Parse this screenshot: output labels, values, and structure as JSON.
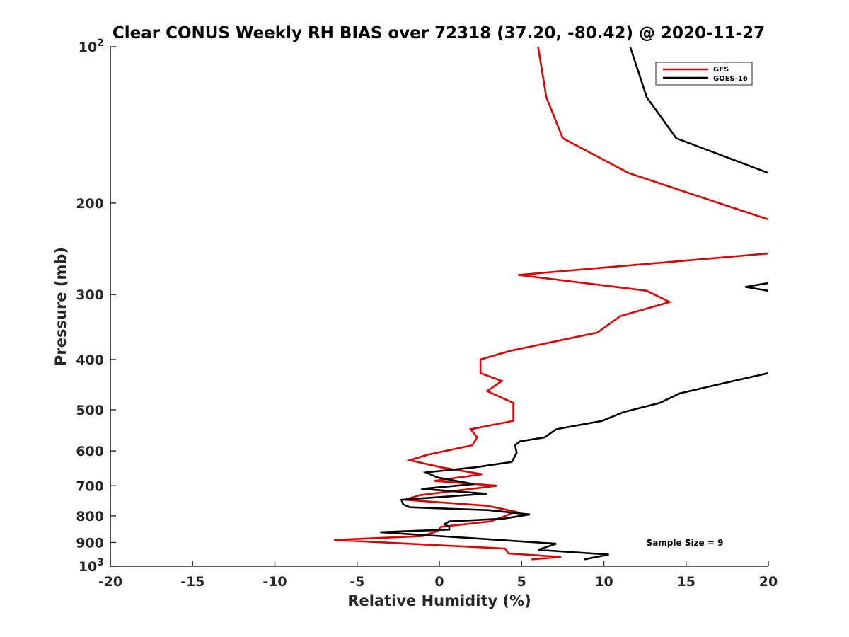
{
  "chart_data": {
    "type": "line",
    "title": "Clear CONUS Weekly RH BIAS over 72318 (37.20, -80.42) @ 2020-11-27",
    "xlabel": "Relative Humidity (%)",
    "ylabel": "Pressure (mb)",
    "xlim": [
      -20,
      20
    ],
    "ylim": [
      100,
      1000
    ],
    "y_scale": "log",
    "y_reversed": true,
    "grid": false,
    "legend_position": "top-right",
    "x_ticks": [
      "-20",
      "-15",
      "-10",
      "-5",
      "0",
      "5",
      "10",
      "15",
      "20"
    ],
    "y_ticks": [
      {
        "value": 100,
        "base": "10",
        "exp": "2"
      },
      {
        "value": 200,
        "label": "200"
      },
      {
        "value": 300,
        "label": "300"
      },
      {
        "value": 400,
        "label": "400"
      },
      {
        "value": 500,
        "label": "500"
      },
      {
        "value": 600,
        "label": "600"
      },
      {
        "value": 700,
        "label": "700"
      },
      {
        "value": 800,
        "label": "800"
      },
      {
        "value": 900,
        "label": "900"
      },
      {
        "value": 1000,
        "base": "10",
        "exp": "3"
      }
    ],
    "annotation": "Sample Size = 9",
    "series": [
      {
        "name": "GFS",
        "color": "#e00000",
        "points": [
          [
            6,
            100
          ],
          [
            6.5,
            125
          ],
          [
            7.5,
            150
          ],
          [
            11.5,
            175
          ],
          [
            17,
            200
          ],
          [
            20,
            215
          ],
          [
            null,
            null
          ],
          [
            20,
            250
          ],
          [
            4.8,
            275
          ],
          [
            12.6,
            295
          ],
          [
            14,
            310
          ],
          [
            11,
            330
          ],
          [
            9.6,
            355
          ],
          [
            4.3,
            385
          ],
          [
            2.5,
            400
          ],
          [
            2.5,
            425
          ],
          [
            3.8,
            440
          ],
          [
            2.9,
            460
          ],
          [
            4.5,
            485
          ],
          [
            4.5,
            525
          ],
          [
            1.9,
            545
          ],
          [
            2.3,
            565
          ],
          [
            2,
            585
          ],
          [
            -0.7,
            610
          ],
          [
            -1.8,
            625
          ],
          [
            0.1,
            645
          ],
          [
            2.6,
            665
          ],
          [
            -0.3,
            685
          ],
          [
            3.5,
            700
          ],
          [
            -1.2,
            730
          ],
          [
            -2.1,
            745
          ],
          [
            2.9,
            765
          ],
          [
            4.6,
            785
          ],
          [
            3.8,
            805
          ],
          [
            3.1,
            820
          ],
          [
            0.1,
            840
          ],
          [
            -0.1,
            855
          ],
          [
            -1,
            875
          ],
          [
            -6.4,
            890
          ],
          [
            4,
            925
          ],
          [
            4.2,
            945
          ],
          [
            7.4,
            960
          ],
          [
            5.6,
            970
          ]
        ]
      },
      {
        "name": "GOES-16",
        "color": "#000000",
        "points": [
          [
            11.6,
            100
          ],
          [
            12.6,
            125
          ],
          [
            14.4,
            150
          ],
          [
            20,
            175
          ],
          [
            null,
            null
          ],
          [
            20,
            285
          ],
          [
            18.6,
            290
          ],
          [
            20,
            295
          ],
          [
            null,
            null
          ],
          [
            20,
            425
          ],
          [
            17.2,
            445
          ],
          [
            14.6,
            465
          ],
          [
            13.4,
            485
          ],
          [
            11.2,
            505
          ],
          [
            9.9,
            525
          ],
          [
            7.1,
            545
          ],
          [
            6.4,
            565
          ],
          [
            4.9,
            575
          ],
          [
            4.6,
            585
          ],
          [
            4.7,
            605
          ],
          [
            4.4,
            630
          ],
          [
            2.2,
            645
          ],
          [
            -0.8,
            660
          ],
          [
            -0.1,
            675
          ],
          [
            2.1,
            695
          ],
          [
            -1.1,
            710
          ],
          [
            2.9,
            725
          ],
          [
            -2.3,
            745
          ],
          [
            -2.2,
            760
          ],
          [
            -1.8,
            770
          ],
          [
            3,
            780
          ],
          [
            5.5,
            795
          ],
          [
            3.9,
            810
          ],
          [
            0.6,
            820
          ],
          [
            0.3,
            830
          ],
          [
            0.6,
            840
          ],
          [
            0.6,
            850
          ],
          [
            -3.6,
            860
          ],
          [
            7.1,
            905
          ],
          [
            6,
            930
          ],
          [
            10.3,
            950
          ],
          [
            8.8,
            970
          ]
        ]
      }
    ]
  }
}
